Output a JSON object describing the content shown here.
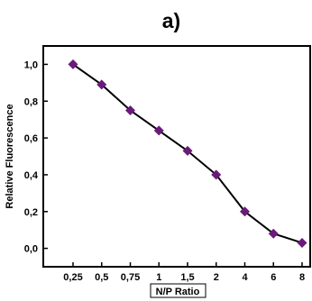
{
  "chart_data": {
    "panel_label": "a)",
    "type": "line",
    "x": [
      "0,25",
      "0,5",
      "0,75",
      "1",
      "1,5",
      "2",
      "4",
      "6",
      "8"
    ],
    "series": [
      {
        "values": [
          1.0,
          0.89,
          0.75,
          0.64,
          0.53,
          0.4,
          0.2,
          0.08,
          0.03
        ]
      }
    ],
    "xlabel": "N/P Ratio",
    "ylabel": "Relative Fluorescence",
    "ylim": [
      -0.1,
      1.1
    ],
    "yticks": [
      0.0,
      0.2,
      0.4,
      0.6,
      0.8,
      1.0
    ],
    "ytick_labels": [
      "0,0",
      "0,2",
      "0,4",
      "0,6",
      "0,8",
      "1,0"
    ],
    "marker_color": "#6a1b7a",
    "line_color": "#000000",
    "grid": false
  }
}
